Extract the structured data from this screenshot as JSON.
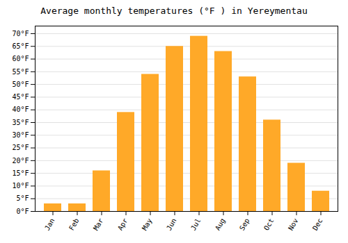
{
  "chart_data": {
    "type": "bar",
    "title": "Average monthly temperatures (°F ) in Yereymentau",
    "categories": [
      "Jan",
      "Feb",
      "Mar",
      "Apr",
      "May",
      "Jun",
      "Jul",
      "Aug",
      "Sep",
      "Oct",
      "Nov",
      "Dec"
    ],
    "values": [
      3,
      3,
      16,
      39,
      54,
      65,
      69,
      63,
      53,
      36,
      19,
      8
    ],
    "color": "#FFA928",
    "ylim": [
      0,
      73
    ],
    "yticks": [
      {
        "value": 0,
        "label": "0°F"
      },
      {
        "value": 5,
        "label": "5°F"
      },
      {
        "value": 10,
        "label": "10°F"
      },
      {
        "value": 15,
        "label": "15°F"
      },
      {
        "value": 20,
        "label": "20°F"
      },
      {
        "value": 25,
        "label": "25°F"
      },
      {
        "value": 30,
        "label": "30°F"
      },
      {
        "value": 35,
        "label": "35°F"
      },
      {
        "value": 40,
        "label": "40°F"
      },
      {
        "value": 45,
        "label": "45°F"
      },
      {
        "value": 50,
        "label": "50°F"
      },
      {
        "value": 55,
        "label": "55°F"
      },
      {
        "value": 60,
        "label": "60°F"
      },
      {
        "value": 65,
        "label": "65°F"
      },
      {
        "value": 70,
        "label": "70°F"
      }
    ],
    "grid": true
  }
}
